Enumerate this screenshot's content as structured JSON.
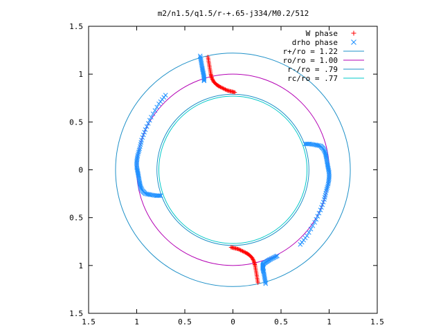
{
  "chart_data": {
    "type": "scatter",
    "title": "m2/n1.5/q1.5/r-+.65-j334/M0.2/512",
    "xlim": [
      -1.5,
      1.5
    ],
    "ylim": [
      -1.5,
      1.5
    ],
    "x_ticks": [
      -1.5,
      -1,
      -0.5,
      0,
      0.5,
      1,
      1.5
    ],
    "x_tick_labels": [
      "1.5",
      "1",
      "0.5",
      "0",
      "0.5",
      "1",
      "1.5"
    ],
    "y_ticks": [
      1.5,
      1,
      0.5,
      0,
      -0.5,
      -1,
      -1.5
    ],
    "y_tick_labels": [
      "1.5",
      "1",
      "0.5",
      "0",
      "0.5",
      "1",
      "1.5"
    ],
    "grid": false,
    "legend_position": "top-right",
    "series": [
      {
        "name": "W phase",
        "marker": "plus",
        "color": "#ff0000",
        "arms": [
          {
            "x": [
              -0.26,
              -0.25,
              -0.24,
              -0.23,
              -0.22,
              -0.2,
              -0.17,
              -0.14,
              -0.1,
              -0.06,
              -0.02,
              0.02
            ],
            "y": [
              1.18,
              1.12,
              1.06,
              1.0,
              0.96,
              0.92,
              0.89,
              0.87,
              0.85,
              0.83,
              0.82,
              0.81
            ]
          },
          {
            "x": [
              0.26,
              0.25,
              0.24,
              0.23,
              0.22,
              0.2,
              0.17,
              0.14,
              0.1,
              0.06,
              0.02,
              -0.02
            ],
            "y": [
              -1.18,
              -1.12,
              -1.06,
              -1.0,
              -0.96,
              -0.92,
              -0.89,
              -0.87,
              -0.85,
              -0.83,
              -0.82,
              -0.81
            ]
          }
        ]
      },
      {
        "name": "drho phase",
        "marker": "cross",
        "color": "#1e90ff",
        "arms": [
          {
            "x": [
              -0.34,
              -0.33,
              -0.32,
              -0.31,
              -0.3,
              -0.3
            ],
            "y": [
              1.19,
              1.13,
              1.07,
              1.02,
              0.97,
              0.93
            ]
          },
          {
            "x": [
              0.75,
              0.8,
              0.86,
              0.91,
              0.94,
              0.96,
              0.97,
              0.98,
              0.99,
              1.0,
              1.0,
              0.99,
              0.97,
              0.95,
              0.91,
              0.85,
              0.77,
              0.7
            ],
            "y": [
              0.27,
              0.27,
              0.26,
              0.25,
              0.22,
              0.18,
              0.13,
              0.07,
              0.02,
              -0.03,
              -0.09,
              -0.15,
              -0.22,
              -0.31,
              -0.42,
              -0.55,
              -0.69,
              -0.78
            ]
          },
          {
            "x": [
              0.34,
              0.33,
              0.32,
              0.31,
              0.31,
              0.32,
              0.35,
              0.38,
              0.42,
              0.46
            ],
            "y": [
              -1.19,
              -1.13,
              -1.07,
              -1.03,
              -1.0,
              -0.98,
              -0.96,
              -0.94,
              -0.92,
              -0.9
            ]
          },
          {
            "x": [
              -0.75,
              -0.8,
              -0.86,
              -0.91,
              -0.94,
              -0.96,
              -0.97,
              -0.98,
              -0.99,
              -1.0,
              -1.0,
              -0.99,
              -0.97,
              -0.95,
              -0.91,
              -0.85,
              -0.77,
              -0.7
            ],
            "y": [
              -0.27,
              -0.27,
              -0.26,
              -0.25,
              -0.22,
              -0.18,
              -0.13,
              -0.07,
              -0.02,
              0.03,
              0.09,
              0.15,
              0.22,
              0.31,
              0.42,
              0.55,
              0.69,
              0.78
            ]
          }
        ]
      }
    ],
    "circles": [
      {
        "name": "r+/ro = 1.22",
        "radius": 1.22,
        "color": "#1e90c8"
      },
      {
        "name": "ro/ro = 1.00",
        "radius": 1.0,
        "color": "#b400b4"
      },
      {
        "name": "r-/ro = .79",
        "radius": 0.79,
        "color": "#1e90c8"
      },
      {
        "name": "rc/ro = .77",
        "radius": 0.77,
        "color": "#00c8c8"
      }
    ]
  }
}
